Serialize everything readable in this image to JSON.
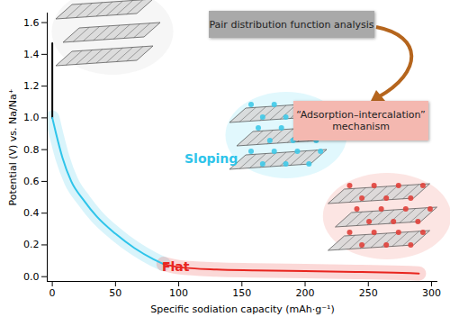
{
  "chart_data": {
    "type": "line",
    "x_label": "Specific sodiation capacity (mAh·g⁻¹)",
    "y_label": "Potential (V) vs. Na/Na⁺",
    "xlim": [
      -4,
      305
    ],
    "ylim": [
      -0.03,
      1.66
    ],
    "xticks": [
      0,
      50,
      100,
      150,
      200,
      250,
      300
    ],
    "yticks": [
      {
        "value": 0,
        "label": "0.0"
      },
      {
        "value": 0.2,
        "label": "0.2"
      },
      {
        "value": 0.4,
        "label": "0.4"
      },
      {
        "value": 0.6,
        "label": "0.6"
      },
      {
        "value": 0.8,
        "label": "0.8"
      },
      {
        "value": 1.0,
        "label": "1.0"
      },
      {
        "value": 1.2,
        "label": "1.2"
      },
      {
        "value": 1.4,
        "label": "1.4"
      },
      {
        "value": 1.6,
        "label": "1.6"
      }
    ],
    "grid": false,
    "series": [
      {
        "color": "#000000",
        "x": [
          0,
          0
        ],
        "values": [
          1.47,
          1.0
        ]
      },
      {
        "name": "Sloping",
        "color": "#2ec4ea",
        "x": [
          0,
          3,
          8,
          15,
          25,
          35,
          50,
          65,
          80,
          88
        ],
        "values": [
          1.0,
          0.9,
          0.75,
          0.6,
          0.48,
          0.38,
          0.27,
          0.18,
          0.11,
          0.08
        ]
      },
      {
        "name": "Flat",
        "color": "#e8251f",
        "x": [
          88,
          100,
          130,
          160,
          200,
          240,
          270,
          290
        ],
        "values": [
          0.08,
          0.06,
          0.045,
          0.04,
          0.035,
          0.03,
          0.025,
          0.02
        ]
      }
    ],
    "annotations": [
      "Pair distribution function analysis",
      "“Adsorption–intercalation” mechanism"
    ]
  }
}
